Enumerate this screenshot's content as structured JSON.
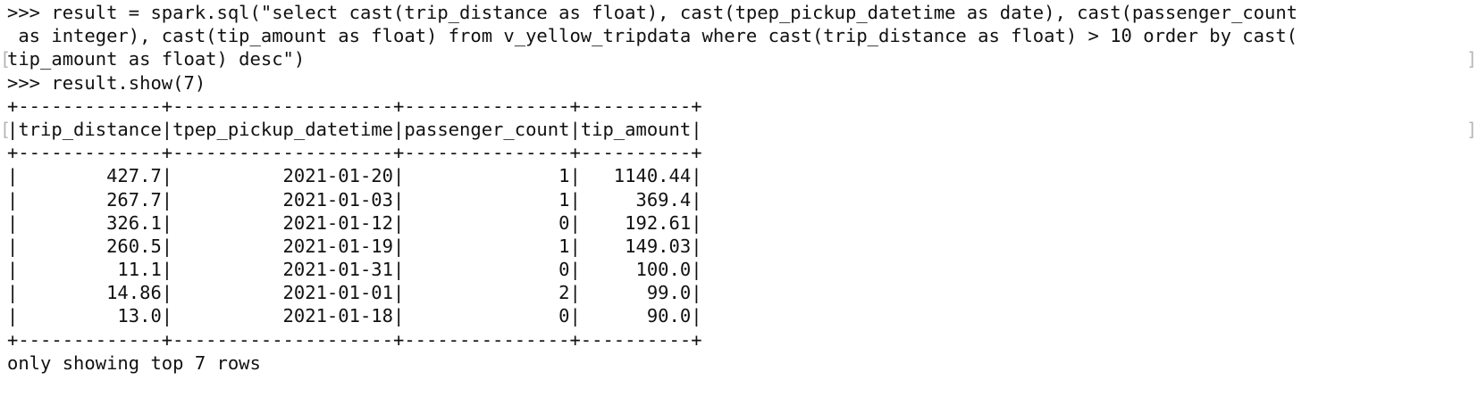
{
  "terminal": {
    "wrap_marker_left": "[",
    "wrap_marker_right": "]",
    "lines": [
      ">>> result = spark.sql(\"select cast(trip_distance as float), cast(tpep_pickup_datetime as date), cast(passenger_count",
      " as integer), cast(tip_amount as float) from v_yellow_tripdata where cast(trip_distance as float) > 10 order by cast(",
      "tip_amount as float) desc\")",
      ">>> result.show(7)",
      "+-------------+--------------------+---------------+----------+",
      "|trip_distance|tpep_pickup_datetime|passenger_count|tip_amount|",
      "+-------------+--------------------+---------------+----------+",
      "|        427.7|          2021-01-20|              1|   1140.44|",
      "|        267.7|          2021-01-03|              1|     369.4|",
      "|        326.1|          2021-01-12|              0|    192.61|",
      "|        260.5|          2021-01-19|              1|    149.03|",
      "|         11.1|          2021-01-31|              0|     100.0|",
      "|        14.86|          2021-01-01|              2|      99.0|",
      "|         13.0|          2021-01-18|              0|      90.0|",
      "+-------------+--------------------+---------------+----------+",
      "only showing top 7 rows"
    ]
  }
}
